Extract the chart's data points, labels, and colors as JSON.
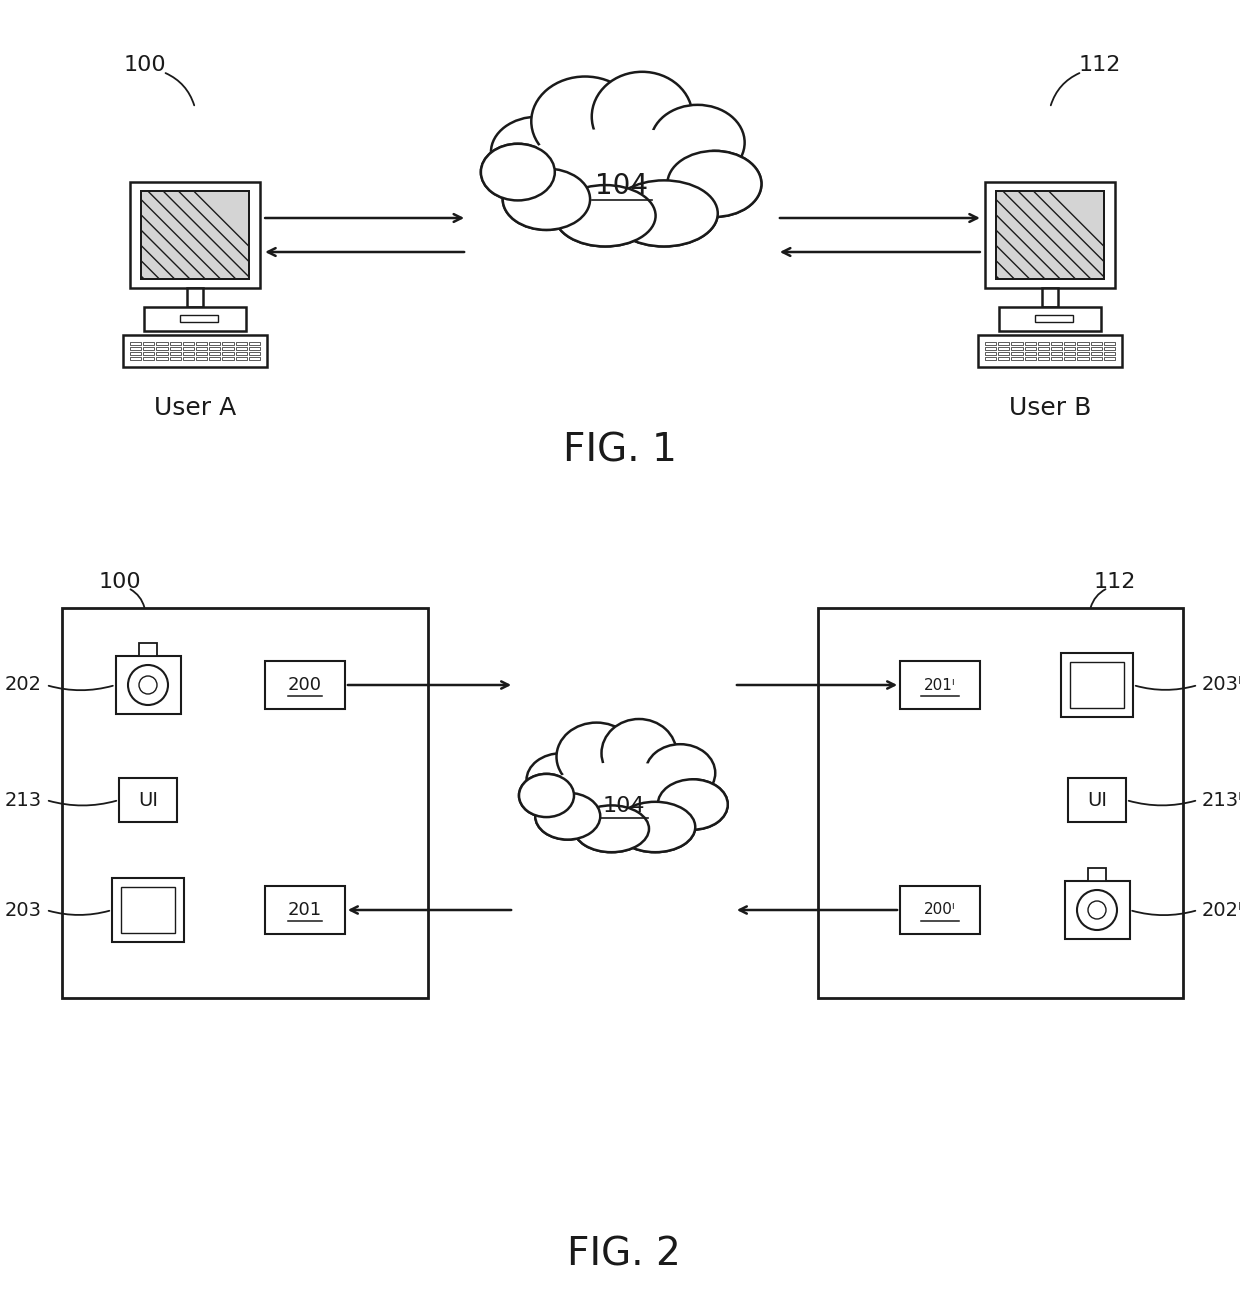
{
  "bg_color": "#ffffff",
  "line_color": "#1a1a1a",
  "fig1_title": "FIG. 1",
  "fig2_title": "FIG. 2",
  "label_100": "100",
  "label_112": "112",
  "label_104": "104",
  "label_userA": "User A",
  "label_userB": "User B",
  "label_200": "200",
  "label_201": "201",
  "label_200i": "200",
  "label_201i": "201",
  "label_202": "202",
  "label_203": "203",
  "label_202i": "202",
  "label_203i": "203",
  "label_213": "213",
  "label_213i": "213",
  "label_UI": "UI",
  "superscript_I": "I"
}
